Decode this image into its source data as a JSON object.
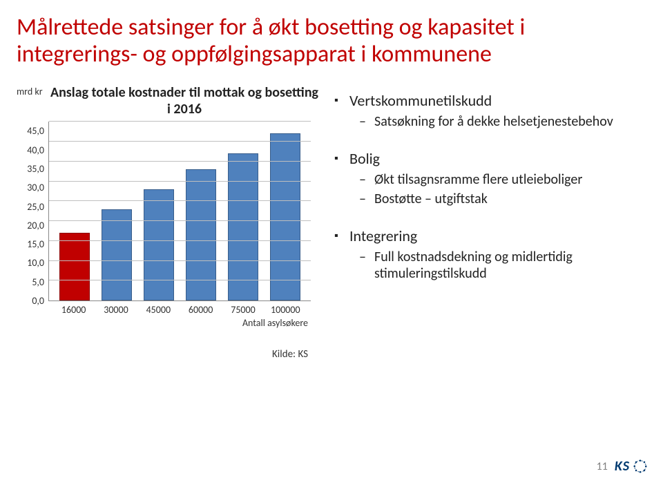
{
  "title": "Målrettede satsinger for å økt bosetting og kapasitet i integrerings- og oppfølgingsapparat i kommunene",
  "chart": {
    "type": "bar",
    "y_unit_label": "mrd kr",
    "title": "Anslag totale kostnader til mottak og bosetting i 2016",
    "ylim": [
      0,
      45
    ],
    "ytick_step": 5,
    "yticks": [
      "45,0",
      "40,0",
      "35,0",
      "30,0",
      "25,0",
      "20,0",
      "15,0",
      "10,0",
      "5,0",
      "0,0"
    ],
    "categories": [
      "16000",
      "30000",
      "45000",
      "60000",
      "75000",
      "100000"
    ],
    "values": [
      17,
      23,
      28,
      33,
      37,
      42
    ],
    "bar_colors": [
      "#c00000",
      "#4f81bd",
      "#4f81bd",
      "#4f81bd",
      "#4f81bd",
      "#4f81bd"
    ],
    "bar_border": "#385d8a",
    "first_bar_border": "#8c0000",
    "grid_color": "#bfbfbf",
    "background": "#ffffff",
    "x_label": "Antall asylsøkere",
    "source": "Kilde: KS",
    "title_fontsize": 20,
    "label_fontsize": 14
  },
  "bullets": [
    {
      "text": "Vertskommunetilskudd",
      "children": [
        {
          "text": "Satsøkning for å dekke helsetjenestebehov"
        }
      ]
    },
    {
      "text": "Bolig",
      "children": [
        {
          "text": "Økt tilsagnsramme flere utleieboliger"
        },
        {
          "text": " Bostøtte – utgiftstak"
        }
      ]
    },
    {
      "text": "Integrering",
      "children": [
        {
          "text": "Full kostnadsdekning og midlertidig stimuleringstilskudd"
        }
      ]
    }
  ],
  "page_number": "11",
  "logo_text": "KS",
  "logo_color": "#003a70"
}
